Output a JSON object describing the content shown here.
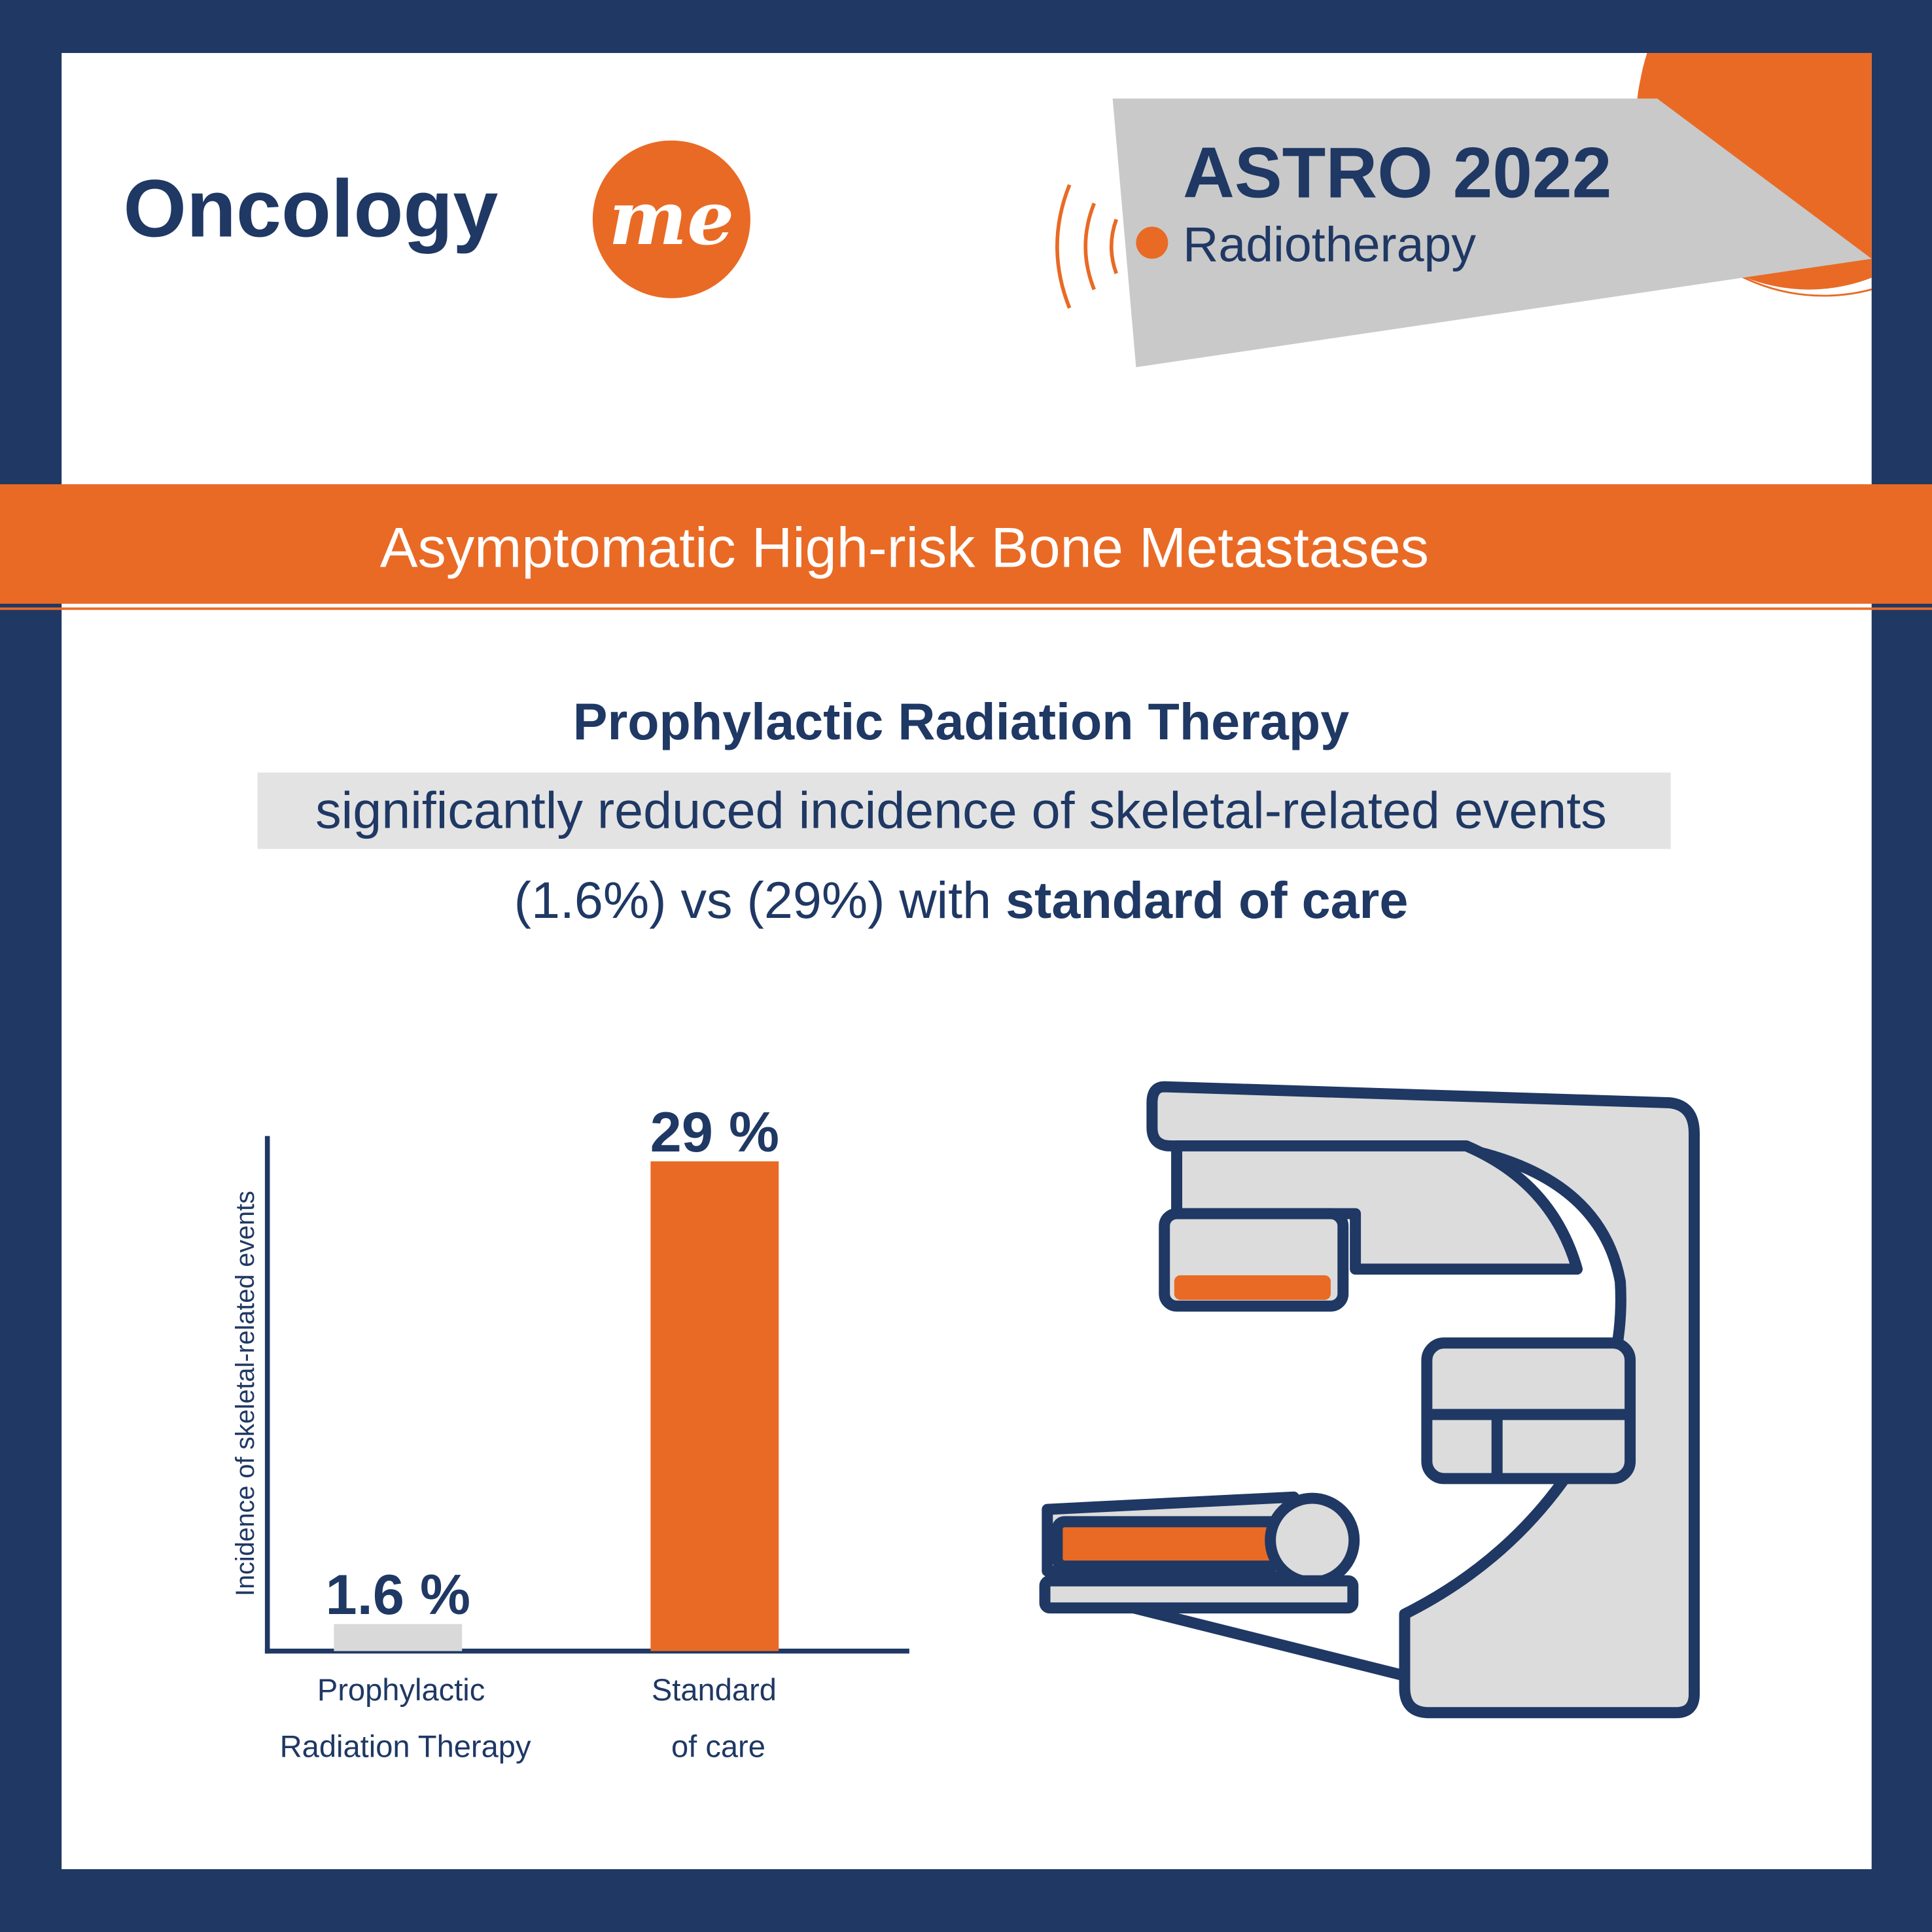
{
  "brand": {
    "name": "Oncology",
    "accent": "me"
  },
  "badge": {
    "event": "ASTRO 2022",
    "topic": "Radiotherapy"
  },
  "banner": "Asymptomatic High-risk Bone Metastases",
  "headline": {
    "line1": "Prophylactic Radiation Therapy",
    "line2": "significantly reduced incidence of skeletal-related events",
    "line3": "(1.6%) vs (29%) with",
    "line3_bold": "standard of care"
  },
  "chart_data": {
    "type": "bar",
    "y_label": "Incidence of skeletal-related events",
    "categories": [
      "Prophylactic Radiation Therapy",
      "Standard of care"
    ],
    "values": [
      1.6,
      29
    ],
    "value_labels": [
      "1.6 %",
      "29 %"
    ],
    "colors": [
      "#d9d9d9",
      "#e96a25"
    ],
    "ylim": [
      0,
      30.5
    ]
  }
}
